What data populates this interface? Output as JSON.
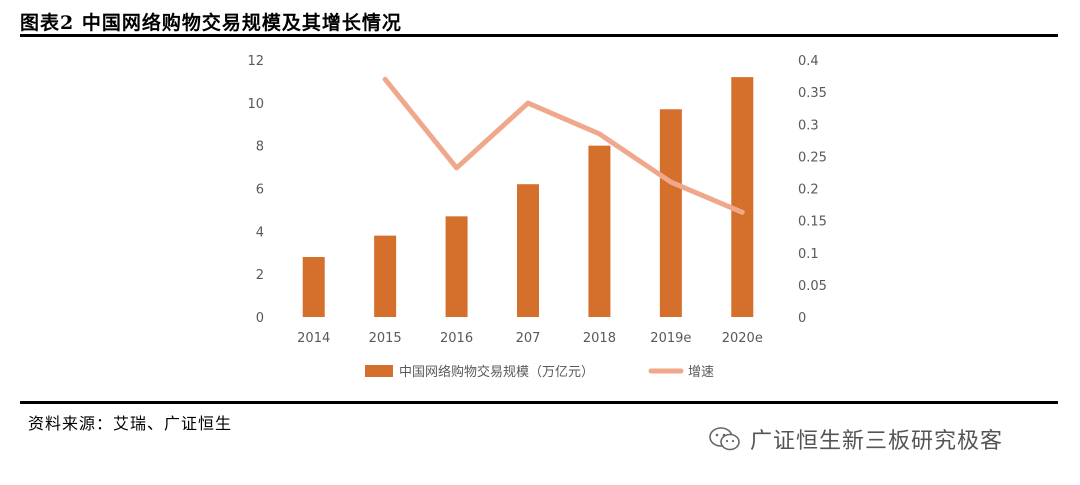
{
  "header": {
    "title": "图表2 中国网络购物交易规模及其增长情况"
  },
  "footer": {
    "source": "资料来源：艾瑞、广证恒生"
  },
  "watermark": {
    "text": "广证恒生新三板研究极客",
    "icon": "wechat-icon"
  },
  "chart_data": {
    "type": "bar",
    "categories": [
      "2014",
      "2015",
      "2016",
      "207",
      "2018",
      "2019e",
      "2020e"
    ],
    "series": [
      {
        "name": "中国网络购物交易规模（万亿元）",
        "type": "bar",
        "axis": "left",
        "values": [
          2.8,
          3.8,
          4.7,
          6.2,
          8.0,
          9.7,
          11.2
        ]
      },
      {
        "name": "增速",
        "type": "line",
        "axis": "right",
        "values": [
          null,
          0.37,
          0.232,
          0.333,
          0.285,
          0.21,
          0.163
        ]
      }
    ],
    "ylim_left": [
      0,
      12
    ],
    "yticks_left": [
      "0",
      "2",
      "4",
      "6",
      "8",
      "10",
      "12"
    ],
    "ylim_right": [
      0,
      0.4
    ],
    "yticks_right": [
      "0",
      "0.05",
      "0.1",
      "0.15",
      "0.2",
      "0.25",
      "0.3",
      "0.35",
      "0.4"
    ],
    "grid": false,
    "legend": "bottom",
    "colors": {
      "bar": "#d4702c",
      "line": "#f0a88c"
    }
  }
}
